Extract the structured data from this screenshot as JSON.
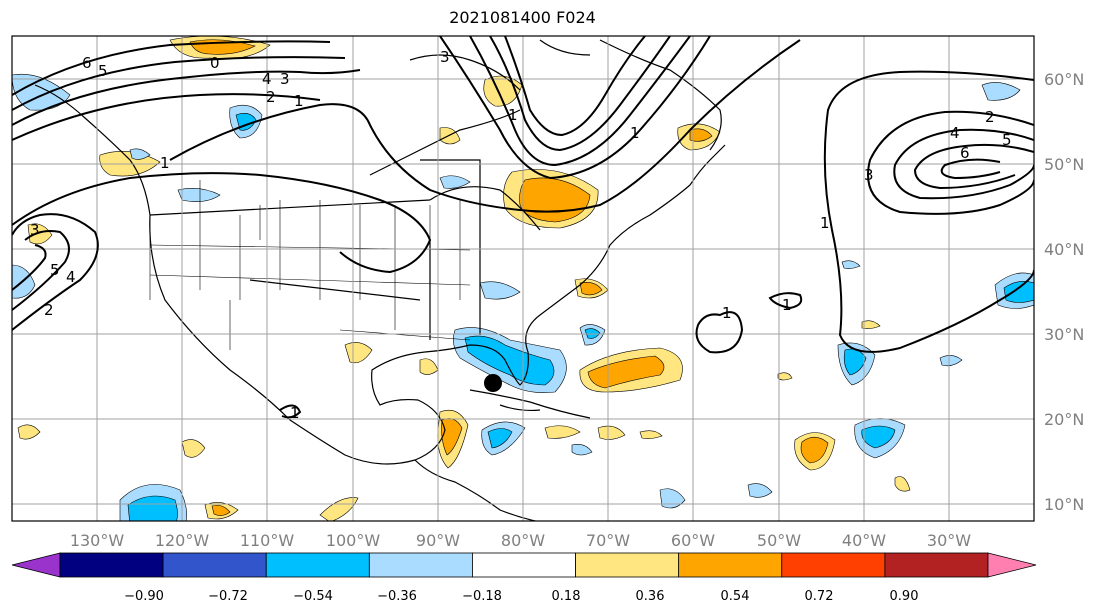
{
  "title": "2021081400 F024",
  "map": {
    "lon_range": [
      -140,
      -20
    ],
    "lat_range": [
      8,
      65
    ],
    "longitude_ticks": [
      "130°W",
      "120°W",
      "110°W",
      "100°W",
      "90°W",
      "80°W",
      "70°W",
      "60°W",
      "50°W",
      "40°W",
      "30°W"
    ],
    "latitude_ticks": [
      "10°N",
      "20°N",
      "30°N",
      "40°N",
      "50°N",
      "60°N"
    ],
    "grid": true,
    "marker": {
      "lon": -84,
      "lat": 24,
      "symbol": "black-dot"
    }
  },
  "colorbar": {
    "ticks": [
      "−0.90",
      "−0.72",
      "−0.54",
      "−0.36",
      "−0.18",
      "0.18",
      "0.36",
      "0.54",
      "0.72",
      "0.90"
    ],
    "colors": [
      "#9933cc",
      "#000080",
      "#3355cc",
      "#00bfff",
      "#aadcff",
      "#ffffff",
      "#ffe680",
      "#ffa500",
      "#ff4000",
      "#b22222",
      "#ff80b0"
    ]
  },
  "contour_labels": [
    "6",
    "5",
    "0",
    "4",
    "3",
    "2",
    "1",
    "1",
    "1",
    "1",
    "3",
    "5",
    "4",
    "2",
    "1",
    "2",
    "4",
    "5",
    "6",
    "3",
    "1",
    "1",
    "1",
    "3"
  ]
}
